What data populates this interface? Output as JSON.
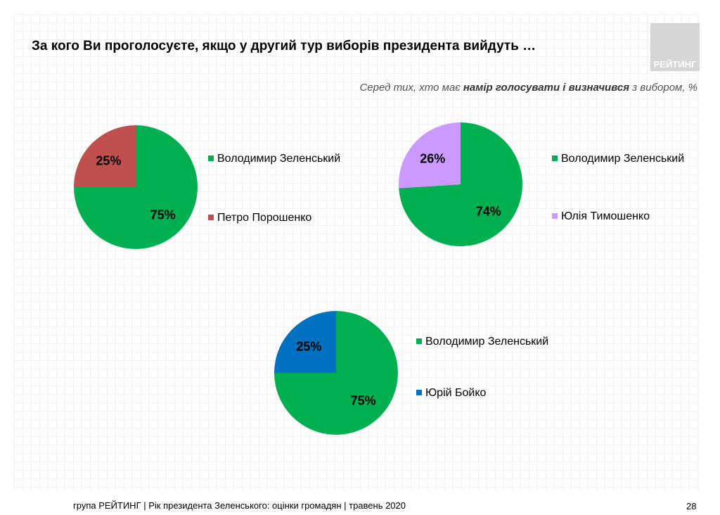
{
  "header": {
    "title": "За кого Ви проголосуєте, якщо у другий тур виборів президента вийдуть …",
    "subtitle_pre": "Серед тих, хто має ",
    "subtitle_bold": "намір голосувати і визначився",
    "subtitle_post": " з вибором, %",
    "logo_text": "РЕЙТИНГ"
  },
  "footer": {
    "text": "група РЕЙТИНГ |  Рік президента Зеленського: оцінки громадян | травень 2020",
    "page": "28"
  },
  "chart_data": [
    {
      "type": "pie",
      "series": [
        {
          "name": "Володимир Зеленський",
          "value": 75,
          "label": "75%",
          "color": "#00b050"
        },
        {
          "name": "Петро Порошенко",
          "value": 25,
          "label": "25%",
          "color": "#c0504d"
        }
      ],
      "legend": "right"
    },
    {
      "type": "pie",
      "series": [
        {
          "name": "Володимир Зеленський",
          "value": 74,
          "label": "74%",
          "color": "#00b050"
        },
        {
          "name": "Юлія Тимошенко",
          "value": 26,
          "label": "26%",
          "color": "#cc99ff"
        }
      ],
      "legend": "right"
    },
    {
      "type": "pie",
      "series": [
        {
          "name": "Володимир Зеленський",
          "value": 75,
          "label": "75%",
          "color": "#00b050"
        },
        {
          "name": "Юрій Бойко",
          "value": 25,
          "label": "25%",
          "color": "#0070c0"
        }
      ],
      "legend": "right"
    }
  ]
}
